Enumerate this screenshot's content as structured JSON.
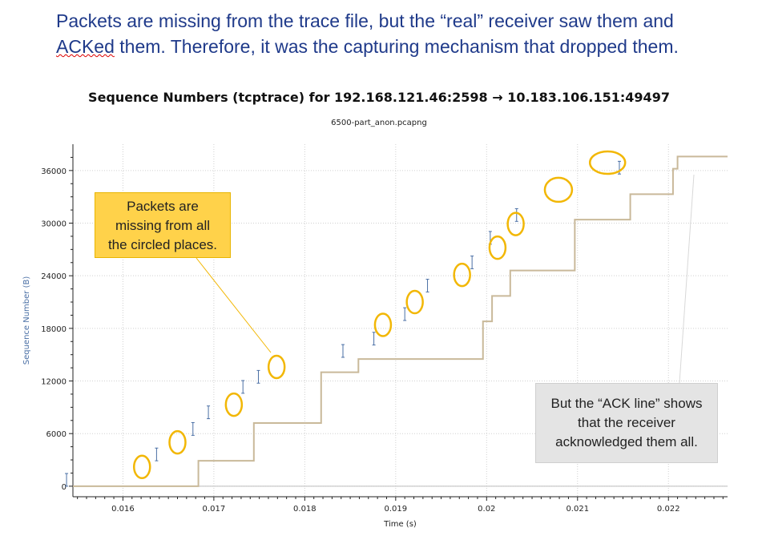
{
  "slide": {
    "headline": {
      "line1": "Packets are missing from the trace file, but the “real” receiver saw them and",
      "line2_word": "ACKed",
      "line2_rest": " them.  Therefore, it was the capturing mechanism that dropped them."
    },
    "callout_missing": [
      "Packets are",
      "missing from all",
      "the circled places."
    ],
    "callout_ack": [
      "But the “ACK line” shows",
      "that the receiver",
      "acknowledged them all."
    ]
  },
  "colors": {
    "headline": "#1f3a8a",
    "circle": "#f2b705",
    "segment": "#4a6fa5",
    "ack_line": "#c9b99a",
    "yellow_callout": "#ffd24a",
    "gray_callout": "#e4e4e4"
  },
  "chart_data": {
    "type": "line",
    "title": "Sequence Numbers (tcptrace) for 192.168.121.46:2598 → 10.183.106.151:49497",
    "subtitle": "6500-part_anon.pcapng",
    "xlabel": "Time (s)",
    "ylabel": "Sequence Number (B)",
    "xlim": [
      0.01545,
      0.02265
    ],
    "ylim": [
      -1200,
      39000
    ],
    "x_ticks": [
      0.016,
      0.017,
      0.018,
      0.019,
      0.02,
      0.021,
      0.022
    ],
    "x_tick_labels": [
      "0.016",
      "0.017",
      "0.018",
      "0.019",
      "0.02",
      "0.021",
      "0.022"
    ],
    "y_ticks": [
      0,
      6000,
      12000,
      18000,
      24000,
      30000,
      36000
    ],
    "y_tick_labels": [
      "0",
      "6000",
      "12000",
      "18000",
      "24000",
      "30000",
      "36000"
    ],
    "grid": true,
    "series": [
      {
        "kind": "ack_step",
        "x": [
          0.01545,
          0.01683,
          0.01683,
          0.01744,
          0.01744,
          0.01818,
          0.01818,
          0.01859,
          0.01859,
          0.01996,
          0.01996,
          0.02006,
          0.02006,
          0.02026,
          0.02026,
          0.02097,
          0.02097,
          0.02158,
          0.02158,
          0.02205,
          0.02205,
          0.0221,
          0.0221,
          0.02265
        ],
        "y": [
          0,
          0,
          2900,
          2900,
          7200,
          7200,
          13000,
          13000,
          14500,
          14500,
          18800,
          18800,
          21700,
          21700,
          24600,
          24600,
          30400,
          30400,
          33300,
          33300,
          36200,
          36200,
          37600,
          37600
        ]
      },
      {
        "kind": "data_segments",
        "segments": [
          {
            "x": 0.01538,
            "y0": 0,
            "y1": 1450
          },
          {
            "x": 0.01637,
            "y0": 2900,
            "y1": 4350
          },
          {
            "x": 0.01677,
            "y0": 5800,
            "y1": 7250
          },
          {
            "x": 0.01694,
            "y0": 7700,
            "y1": 9150
          },
          {
            "x": 0.01732,
            "y0": 10600,
            "y1": 12050
          },
          {
            "x": 0.01749,
            "y0": 11750,
            "y1": 13200
          },
          {
            "x": 0.01842,
            "y0": 14700,
            "y1": 16150
          },
          {
            "x": 0.01876,
            "y0": 16100,
            "y1": 17550
          },
          {
            "x": 0.0191,
            "y0": 18900,
            "y1": 20350
          },
          {
            "x": 0.01935,
            "y0": 22150,
            "y1": 23600
          },
          {
            "x": 0.01984,
            "y0": 24800,
            "y1": 26250
          },
          {
            "x": 0.02004,
            "y0": 27600,
            "y1": 29050
          },
          {
            "x": 0.02033,
            "y0": 30200,
            "y1": 31650
          },
          {
            "x": 0.02146,
            "y0": 35600,
            "y1": 37050
          }
        ]
      },
      {
        "kind": "missing_circles",
        "points": [
          {
            "x": 0.01621,
            "y": 2200
          },
          {
            "x": 0.0166,
            "y": 5000
          },
          {
            "x": 0.01722,
            "y": 9300
          },
          {
            "x": 0.01769,
            "y": 13600
          },
          {
            "x": 0.01886,
            "y": 18400
          },
          {
            "x": 0.01921,
            "y": 21000
          },
          {
            "x": 0.01973,
            "y": 24100
          },
          {
            "x": 0.02012,
            "y": 27200
          },
          {
            "x": 0.02032,
            "y": 29900
          },
          {
            "x": 0.02079,
            "y": 33800
          },
          {
            "x": 0.02133,
            "y": 36900
          }
        ]
      }
    ]
  }
}
